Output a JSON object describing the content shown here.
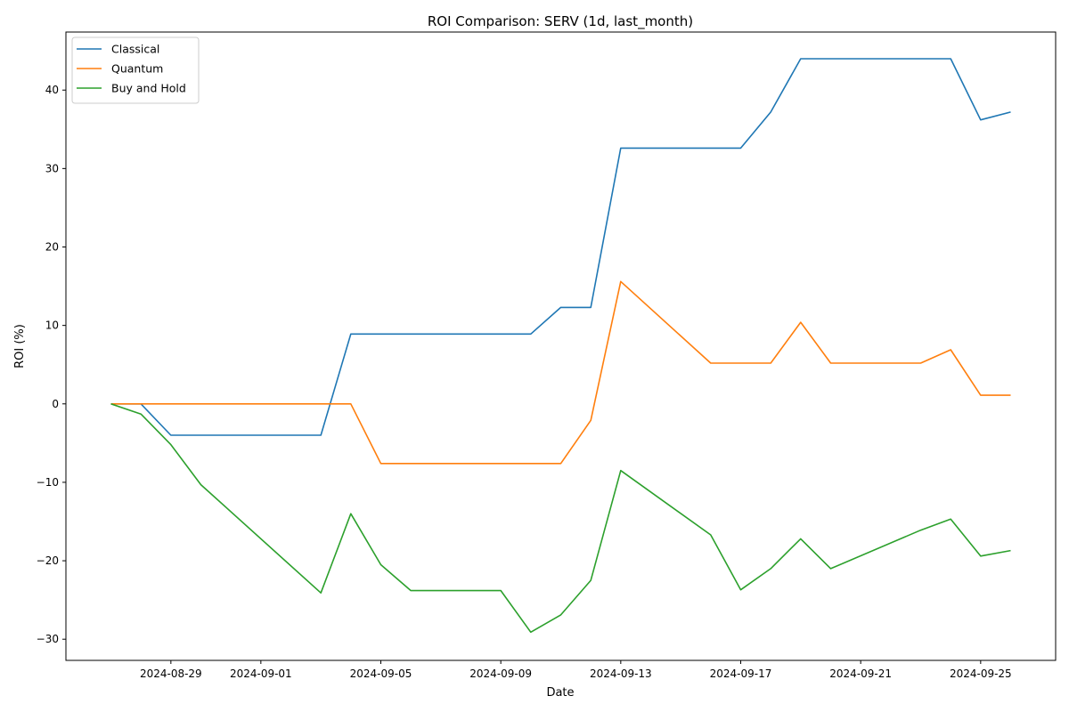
{
  "chart_data": {
    "type": "line",
    "title": "ROI Comparison: SERV (1d, last_month)",
    "xlabel": "Date",
    "ylabel": "ROI (%)",
    "x": [
      "2024-08-27",
      "2024-08-28",
      "2024-08-29",
      "2024-08-30",
      "2024-09-03",
      "2024-09-04",
      "2024-09-05",
      "2024-09-06",
      "2024-09-09",
      "2024-09-10",
      "2024-09-11",
      "2024-09-12",
      "2024-09-13",
      "2024-09-16",
      "2024-09-17",
      "2024-09-18",
      "2024-09-19",
      "2024-09-20",
      "2024-09-23",
      "2024-09-24",
      "2024-09-25",
      "2024-09-26"
    ],
    "series": [
      {
        "name": "Classical",
        "color": "#1f77b4",
        "values": [
          0,
          0,
          -4.0,
          -4.0,
          -4.0,
          8.9,
          8.9,
          8.9,
          8.9,
          8.9,
          12.3,
          12.3,
          32.6,
          32.6,
          32.6,
          37.2,
          44.0,
          44.0,
          44.0,
          44.0,
          36.2,
          37.2
        ]
      },
      {
        "name": "Quantum",
        "color": "#ff7f0e",
        "values": [
          0,
          0,
          0,
          0,
          0,
          0,
          -7.6,
          -7.6,
          -7.6,
          -7.6,
          -7.6,
          -2.1,
          15.6,
          5.2,
          5.2,
          5.2,
          10.4,
          5.2,
          5.2,
          6.9,
          1.1,
          1.1
        ]
      },
      {
        "name": "Buy and Hold",
        "color": "#2ca02c",
        "values": [
          0,
          -1.3,
          -5.2,
          -10.3,
          -24.1,
          -14.0,
          -20.5,
          -23.8,
          -23.8,
          -29.1,
          -26.9,
          -22.5,
          -8.5,
          -16.7,
          -23.7,
          -21.0,
          -17.2,
          -21.0,
          -16.1,
          -14.7,
          -19.4,
          -18.7
        ]
      }
    ],
    "xticks": [
      "2024-08-29",
      "2024-09-01",
      "2024-09-05",
      "2024-09-09",
      "2024-09-13",
      "2024-09-17",
      "2024-09-21",
      "2024-09-25"
    ],
    "yticks": [
      -30,
      -20,
      -10,
      0,
      10,
      20,
      30,
      40
    ],
    "ylim": [
      -32.7,
      47.4
    ],
    "xlim": [
      "2024-08-25.5",
      "2024-09-27.5"
    ],
    "grid": false,
    "legend_position": "upper left"
  }
}
